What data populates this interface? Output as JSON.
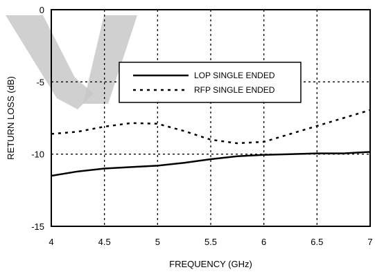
{
  "chart_data": {
    "type": "line",
    "title": "",
    "xlabel": "FREQUENCY (GHz)",
    "ylabel": "RETURN LOSS (dB)",
    "xlim": [
      4,
      7
    ],
    "ylim": [
      -15,
      0
    ],
    "x_ticks": [
      4,
      4.5,
      5,
      5.5,
      6,
      6.5,
      7
    ],
    "x_tick_labels": [
      "4",
      "4.5",
      "5",
      "5.5",
      "6",
      "6.5",
      "7"
    ],
    "y_ticks": [
      0,
      -5,
      -10,
      -15
    ],
    "y_tick_labels": [
      "0",
      "-5",
      "-10",
      "-15"
    ],
    "grid": true,
    "legend_position": "upper-center",
    "series": [
      {
        "name": "LOP SINGLE ENDED",
        "style": "solid",
        "color": "#000000",
        "x": [
          4.0,
          4.25,
          4.5,
          4.75,
          5.0,
          5.25,
          5.5,
          5.75,
          6.0,
          6.25,
          6.5,
          6.75,
          7.0
        ],
        "y": [
          -11.5,
          -11.2,
          -11.0,
          -10.9,
          -10.8,
          -10.6,
          -10.35,
          -10.15,
          -10.05,
          -10.0,
          -9.95,
          -9.95,
          -9.85
        ]
      },
      {
        "name": "RFP SINGLE ENDED",
        "style": "dashed",
        "color": "#000000",
        "x": [
          4.0,
          4.25,
          4.5,
          4.75,
          5.0,
          5.25,
          5.5,
          5.75,
          6.0,
          6.25,
          6.5,
          6.75,
          7.0
        ],
        "y": [
          -8.6,
          -8.45,
          -8.1,
          -7.85,
          -7.9,
          -8.4,
          -9.0,
          -9.25,
          -9.15,
          -8.6,
          -8.05,
          -7.5,
          -6.95
        ]
      }
    ]
  }
}
